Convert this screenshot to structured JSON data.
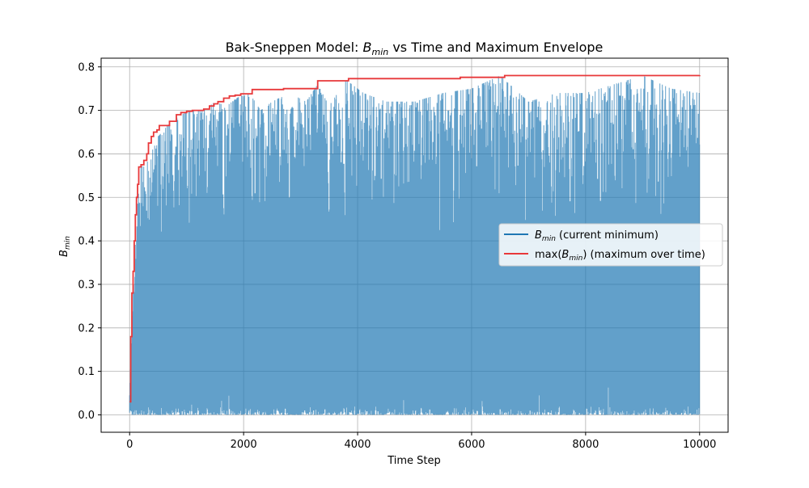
{
  "chart_data": {
    "type": "line",
    "title": {
      "prefix": "Bak-Sneppen Model: ",
      "var": "B",
      "sub": "min",
      "suffix": " vs Time and Maximum Envelope"
    },
    "xlabel": "Time Step",
    "ylabel": {
      "var": "B",
      "sub": "min"
    },
    "xlim": [
      -500,
      10500
    ],
    "ylim": [
      -0.04,
      0.82
    ],
    "xticks": [
      0,
      2000,
      4000,
      6000,
      8000,
      10000
    ],
    "xtick_labels": [
      "0",
      "2000",
      "4000",
      "6000",
      "8000",
      "10000"
    ],
    "yticks": [
      0.0,
      0.1,
      0.2,
      0.3,
      0.4,
      0.5,
      0.6,
      0.7,
      0.8
    ],
    "ytick_labels": [
      "0.0",
      "0.1",
      "0.2",
      "0.3",
      "0.4",
      "0.5",
      "0.6",
      "0.7",
      "0.8"
    ],
    "grid": true,
    "legend_position": "center-right",
    "series": [
      {
        "name": {
          "var": "B",
          "sub": "min",
          "suffix": " (current minimum)"
        },
        "color": "#1f77b4",
        "style": "dense-oscillating",
        "lower_floor_approx": 0.0,
        "upper_envelope_samples": {
          "x": [
            0,
            50,
            100,
            150,
            200,
            300,
            500,
            700,
            900,
            1100,
            1300,
            1500,
            1700,
            1900,
            2100,
            2300,
            2500,
            2800,
            3100,
            3300,
            3500,
            3800,
            4100,
            4500,
            5000,
            5500,
            6000,
            6500,
            7000,
            7500,
            8000,
            8500,
            9000,
            9500,
            10000
          ],
          "y": [
            0.05,
            0.27,
            0.41,
            0.5,
            0.57,
            0.58,
            0.64,
            0.67,
            0.69,
            0.7,
            0.7,
            0.72,
            0.71,
            0.73,
            0.74,
            0.7,
            0.72,
            0.74,
            0.72,
            0.76,
            0.71,
            0.77,
            0.74,
            0.72,
            0.72,
            0.74,
            0.75,
            0.78,
            0.72,
            0.74,
            0.74,
            0.76,
            0.78,
            0.75,
            0.74
          ]
        }
      },
      {
        "name": {
          "prefix": "max(",
          "var": "B",
          "sub": "min",
          "suffix": ") (maximum over time)"
        },
        "color": "#e8383a",
        "style": "step",
        "x": [
          0,
          20,
          40,
          60,
          80,
          100,
          120,
          140,
          160,
          200,
          250,
          300,
          330,
          380,
          420,
          480,
          520,
          600,
          700,
          820,
          900,
          1000,
          1100,
          1200,
          1300,
          1400,
          1480,
          1550,
          1650,
          1750,
          1850,
          1950,
          2150,
          2700,
          3300,
          3840,
          5800,
          6580,
          10000
        ],
        "y": [
          0.03,
          0.18,
          0.28,
          0.33,
          0.4,
          0.46,
          0.5,
          0.53,
          0.57,
          0.575,
          0.585,
          0.6,
          0.625,
          0.64,
          0.65,
          0.655,
          0.665,
          0.665,
          0.675,
          0.69,
          0.695,
          0.698,
          0.7,
          0.7,
          0.703,
          0.71,
          0.715,
          0.72,
          0.728,
          0.733,
          0.735,
          0.738,
          0.748,
          0.75,
          0.768,
          0.773,
          0.776,
          0.78,
          0.781
        ]
      }
    ]
  }
}
